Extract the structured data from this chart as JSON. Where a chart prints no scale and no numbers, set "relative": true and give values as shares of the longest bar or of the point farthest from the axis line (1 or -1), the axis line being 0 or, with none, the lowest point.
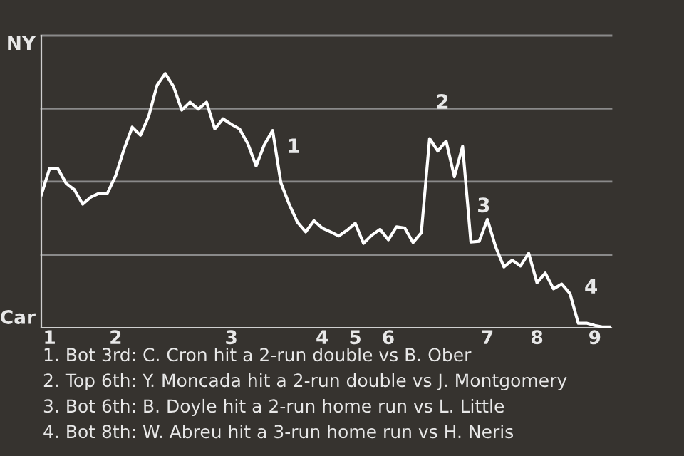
{
  "chart_data": {
    "type": "line",
    "relative": true,
    "categories": [
      null,
      "1",
      null,
      null,
      null,
      null,
      null,
      null,
      null,
      "2",
      null,
      null,
      null,
      null,
      null,
      null,
      null,
      null,
      null,
      null,
      null,
      null,
      null,
      "3",
      null,
      null,
      null,
      null,
      null,
      null,
      null,
      null,
      null,
      null,
      "4",
      null,
      null,
      null,
      "5",
      null,
      null,
      null,
      "6",
      null,
      null,
      null,
      null,
      null,
      null,
      null,
      null,
      null,
      null,
      null,
      "7",
      null,
      null,
      null,
      null,
      null,
      "8",
      null,
      null,
      null,
      null,
      null,
      null,
      "9",
      null,
      null
    ],
    "series": [
      {
        "color": "#ffffff",
        "values": [
          0.523,
          0.626,
          0.626,
          0.568,
          0.543,
          0.486,
          0.514,
          0.529,
          0.529,
          0.598,
          0.701,
          0.789,
          0.757,
          0.832,
          0.953,
          1,
          0.949,
          0.856,
          0.887,
          0.86,
          0.887,
          0.782,
          0.822,
          0.8,
          0.782,
          0.724,
          0.636,
          0.72,
          0.776,
          0.57,
          0.486,
          0.415,
          0.377,
          0.421,
          0.392,
          0.377,
          0.361,
          0.383,
          0.411,
          0.332,
          0.364,
          0.387,
          0.346,
          0.397,
          0.392,
          0.335,
          0.374,
          0.744,
          0.695,
          0.734,
          0.594,
          0.714,
          0.337,
          0.34,
          0.426,
          0.318,
          0.239,
          0.266,
          0.243,
          0.293,
          0.177,
          0.215,
          0.153,
          0.172,
          0.134,
          0.018,
          0.018,
          0.009,
          0.003,
          0.003
        ]
      }
    ],
    "ref_lines": [
      {
        "axis": "y",
        "value": 0.287,
        "label": null,
        "color": "#8a8a8a"
      },
      {
        "axis": "y",
        "value": 0.575,
        "label": null,
        "color": "#8a8a8a"
      },
      {
        "axis": "y",
        "value": 0.862,
        "label": null,
        "color": "#8a8a8a"
      },
      {
        "axis": "y",
        "value": 1.149,
        "label": null,
        "color": "#8a8a8a"
      }
    ],
    "annotations": [
      "NY",
      "Car",
      {
        "text": "1",
        "y": 0.57
      },
      {
        "text": "2",
        "y": 0.744
      },
      {
        "text": "3",
        "y": 0.337
      },
      {
        "text": "4",
        "y": 0.018
      },
      "1. Bot 3rd: C. Cron hit a 2-run double vs B. Ober",
      "2. Top 6th: Y. Moncada hit a 2-run double vs J. Montgomery",
      "3. Bot 6th: B. Doyle hit a 2-run home run vs L. Little",
      "4. Bot 8th: W. Abreu hit a 3-run home run vs H. Neris"
    ],
    "marker": "none",
    "line_style": "solid"
  }
}
